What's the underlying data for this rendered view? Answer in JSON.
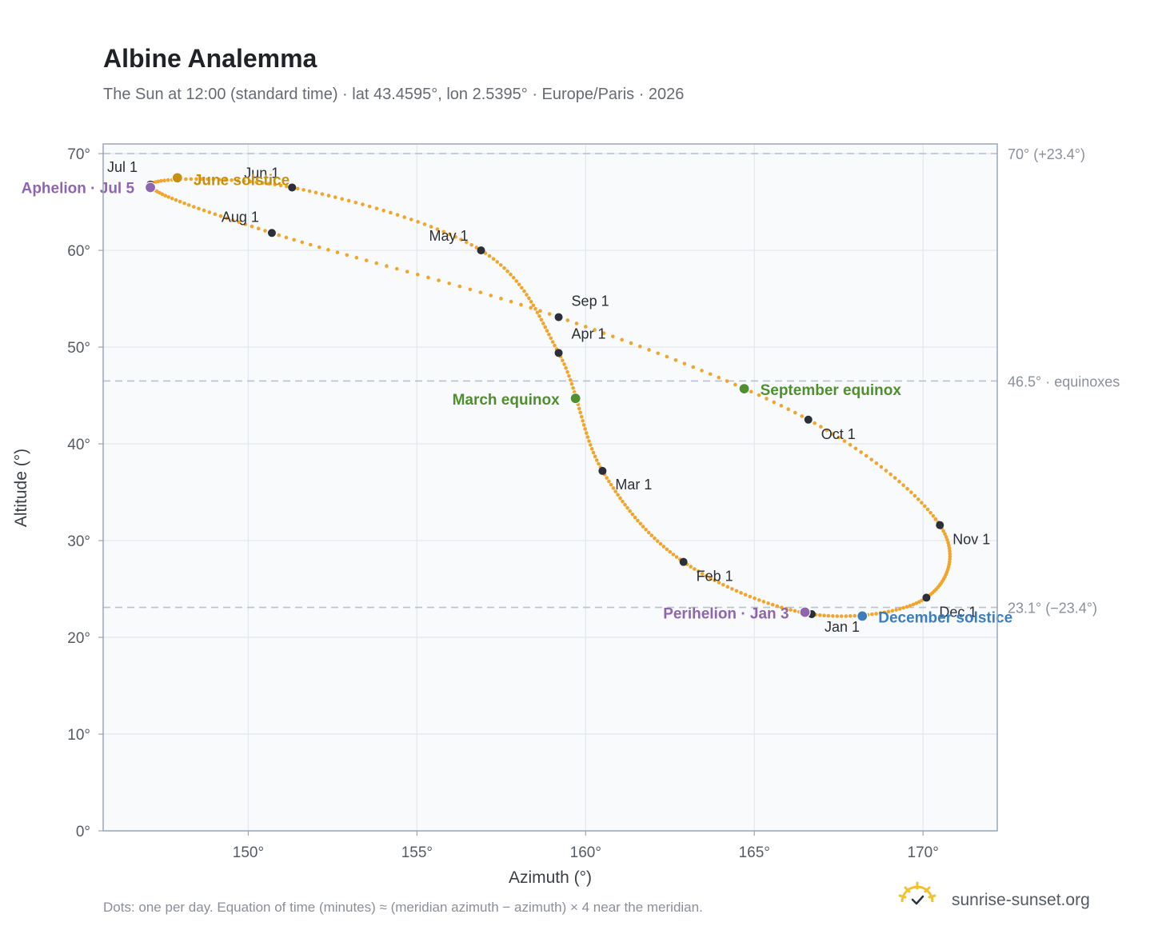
{
  "title": "Albine Analemma",
  "subtitle": "The Sun at 12:00 (standard time) · lat 43.4595°, lon 2.5395° · Europe/Paris · 2026",
  "footnote": "Dots: one per day. Equation of time (minutes) ≈ (meridian azimuth − azimuth) × 4 near the meridian.",
  "brand": {
    "name": "sunrise-sunset.org",
    "icon": "sun-logo-icon"
  },
  "colors": {
    "curve": "#f2a52b",
    "month_dot": "#2b2f3a",
    "solstice_june": "#c9900f",
    "equinox": "#4f8f2f",
    "apsis": "#9065b0",
    "solstice_december": "#3a7ec0",
    "plot_background": "#f8fafc",
    "grid": "#e2e7ee",
    "reference_line": "#b9c2ce",
    "frame": "#9aa6b6"
  },
  "chart_data": {
    "type": "scatter",
    "xlabel": "Azimuth (°)",
    "ylabel": "Altitude (°)",
    "xlim": [
      145.7,
      172.2
    ],
    "ylim": [
      0,
      71
    ],
    "x_ticks": [
      150,
      155,
      160,
      165,
      170
    ],
    "x_tick_labels": [
      "150°",
      "155°",
      "160°",
      "165°",
      "170°"
    ],
    "y_ticks": [
      0,
      10,
      20,
      30,
      40,
      50,
      60,
      70
    ],
    "y_tick_labels": [
      "0°",
      "10°",
      "20°",
      "30°",
      "40°",
      "50°",
      "60°",
      "70°"
    ],
    "grid": true,
    "reference_lines": [
      {
        "altitude": 70,
        "label": "70° (+23.4°)"
      },
      {
        "altitude": 46.5,
        "label": "46.5° · equinoxes"
      },
      {
        "altitude": 23.1,
        "label": "23.1° (−23.4°)"
      }
    ],
    "month_points": [
      {
        "label": "Jan 1",
        "azimuth": 166.7,
        "altitude": 22.4
      },
      {
        "label": "Feb 1",
        "azimuth": 162.9,
        "altitude": 27.8
      },
      {
        "label": "Mar 1",
        "azimuth": 160.5,
        "altitude": 37.2
      },
      {
        "label": "Apr 1",
        "azimuth": 159.2,
        "altitude": 49.4
      },
      {
        "label": "May 1",
        "azimuth": 156.9,
        "altitude": 60.0
      },
      {
        "label": "Jun 1",
        "azimuth": 151.3,
        "altitude": 66.5
      },
      {
        "label": "Jul 1",
        "azimuth": 147.1,
        "altitude": 66.8
      },
      {
        "label": "Aug 1",
        "azimuth": 150.7,
        "altitude": 61.8
      },
      {
        "label": "Sep 1",
        "azimuth": 159.2,
        "altitude": 53.1
      },
      {
        "label": "Oct 1",
        "azimuth": 166.6,
        "altitude": 42.5
      },
      {
        "label": "Nov 1",
        "azimuth": 170.5,
        "altitude": 31.6
      },
      {
        "label": "Dec 1",
        "azimuth": 170.1,
        "altitude": 24.1
      }
    ],
    "events": [
      {
        "label": "June solstice",
        "azimuth": 147.9,
        "altitude": 67.5
      },
      {
        "label": "Aphelion · Jul 5",
        "azimuth": 147.1,
        "altitude": 66.5
      },
      {
        "label": "March equinox",
        "azimuth": 159.7,
        "altitude": 44.7
      },
      {
        "label": "September equinox",
        "azimuth": 164.7,
        "altitude": 45.7
      },
      {
        "label": "Perihelion · Jan 3",
        "azimuth": 166.5,
        "altitude": 22.6
      },
      {
        "label": "December solstice",
        "azimuth": 168.2,
        "altitude": 22.2
      }
    ]
  }
}
